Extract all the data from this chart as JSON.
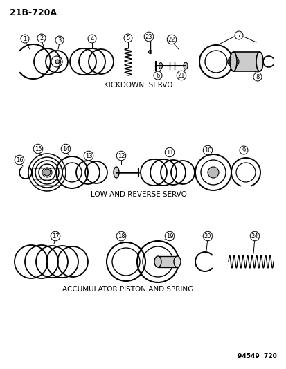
{
  "title_code": "21B-720A",
  "section1_label": "KICKDOWN  SERVO",
  "section2_label": "LOW AND REVERSE SERVO",
  "section3_label": "ACCUMULATOR PISTON AND SPRING",
  "catalog_number": "94549  720",
  "bg_color": "#ffffff",
  "line_color": "#000000"
}
